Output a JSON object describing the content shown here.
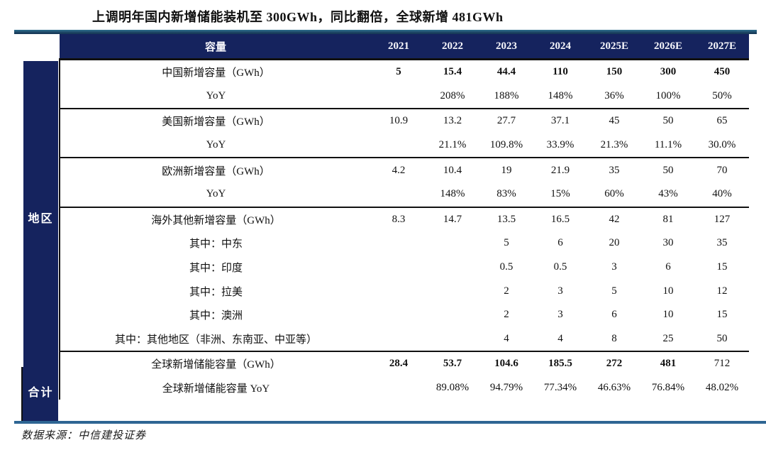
{
  "title": "上调明年国内新增储能装机至 300GWh，同比翻倍，全球新增 481GWh",
  "source": "数据来源：中信建投证券",
  "sidebar": {
    "region_label": "地区",
    "total_label": "合计"
  },
  "colors": {
    "navy_header": "#15235e",
    "title_rule": "#1d4e68",
    "bottom_rule": "#2e6593",
    "separator_black": "#111111",
    "header_text": "#f7f7fc"
  },
  "chart_data": {
    "type": "table",
    "columns": [
      "容量",
      "2021",
      "2022",
      "2023",
      "2024",
      "2025E",
      "2026E",
      "2027E"
    ],
    "row_groups": [
      {
        "name": "地区",
        "rows_span": [
          1,
          12
        ]
      },
      {
        "name": "合计",
        "rows_span": [
          13,
          14
        ]
      }
    ],
    "rows": [
      {
        "label": "中国新增容量（GWh）",
        "values": [
          "5",
          "15.4",
          "44.4",
          "110",
          "150",
          "300",
          "450"
        ],
        "bold": "all",
        "group_end": false
      },
      {
        "label": "YoY",
        "values": [
          "",
          "208%",
          "188%",
          "148%",
          "36%",
          "100%",
          "50%"
        ],
        "bold": "none",
        "group_end": true
      },
      {
        "label": "美国新增容量（GWh）",
        "values": [
          "10.9",
          "13.2",
          "27.7",
          "37.1",
          "45",
          "50",
          "65"
        ],
        "bold": "none",
        "group_end": false
      },
      {
        "label": "YoY",
        "values": [
          "",
          "21.1%",
          "109.8%",
          "33.9%",
          "21.3%",
          "11.1%",
          "30.0%"
        ],
        "bold": "none",
        "group_end": true
      },
      {
        "label": "欧洲新增容量（GWh）",
        "values": [
          "4.2",
          "10.4",
          "19",
          "21.9",
          "35",
          "50",
          "70"
        ],
        "bold": "none",
        "group_end": false
      },
      {
        "label": "YoY",
        "values": [
          "",
          "148%",
          "83%",
          "15%",
          "60%",
          "43%",
          "40%"
        ],
        "bold": "none",
        "group_end": true
      },
      {
        "label": "海外其他新增容量（GWh）",
        "values": [
          "8.3",
          "14.7",
          "13.5",
          "16.5",
          "42",
          "81",
          "127"
        ],
        "bold": "none",
        "group_end": false
      },
      {
        "label": "其中：中东",
        "values": [
          "",
          "",
          "5",
          "6",
          "20",
          "30",
          "35"
        ],
        "bold": "none",
        "group_end": false
      },
      {
        "label": "其中：印度",
        "values": [
          "",
          "",
          "0.5",
          "0.5",
          "3",
          "6",
          "15"
        ],
        "bold": "none",
        "group_end": false
      },
      {
        "label": "其中：拉美",
        "values": [
          "",
          "",
          "2",
          "3",
          "5",
          "10",
          "12"
        ],
        "bold": "none",
        "group_end": false
      },
      {
        "label": "其中：澳洲",
        "values": [
          "",
          "",
          "2",
          "3",
          "6",
          "10",
          "15"
        ],
        "bold": "none",
        "group_end": false
      },
      {
        "label": "其中：其他地区（非洲、东南亚、中亚等）",
        "values": [
          "",
          "",
          "4",
          "4",
          "8",
          "25",
          "50"
        ],
        "bold": "none",
        "group_end": true
      },
      {
        "label": "全球新增储能容量（GWh）",
        "values": [
          "28.4",
          "53.7",
          "104.6",
          "185.5",
          "272",
          "481",
          "712"
        ],
        "bold": "except_last",
        "group_end": false
      },
      {
        "label": "全球新增储能容量 YoY",
        "values": [
          "",
          "89.08%",
          "94.79%",
          "77.34%",
          "46.63%",
          "76.84%",
          "48.02%"
        ],
        "bold": "none",
        "group_end": false
      }
    ]
  }
}
